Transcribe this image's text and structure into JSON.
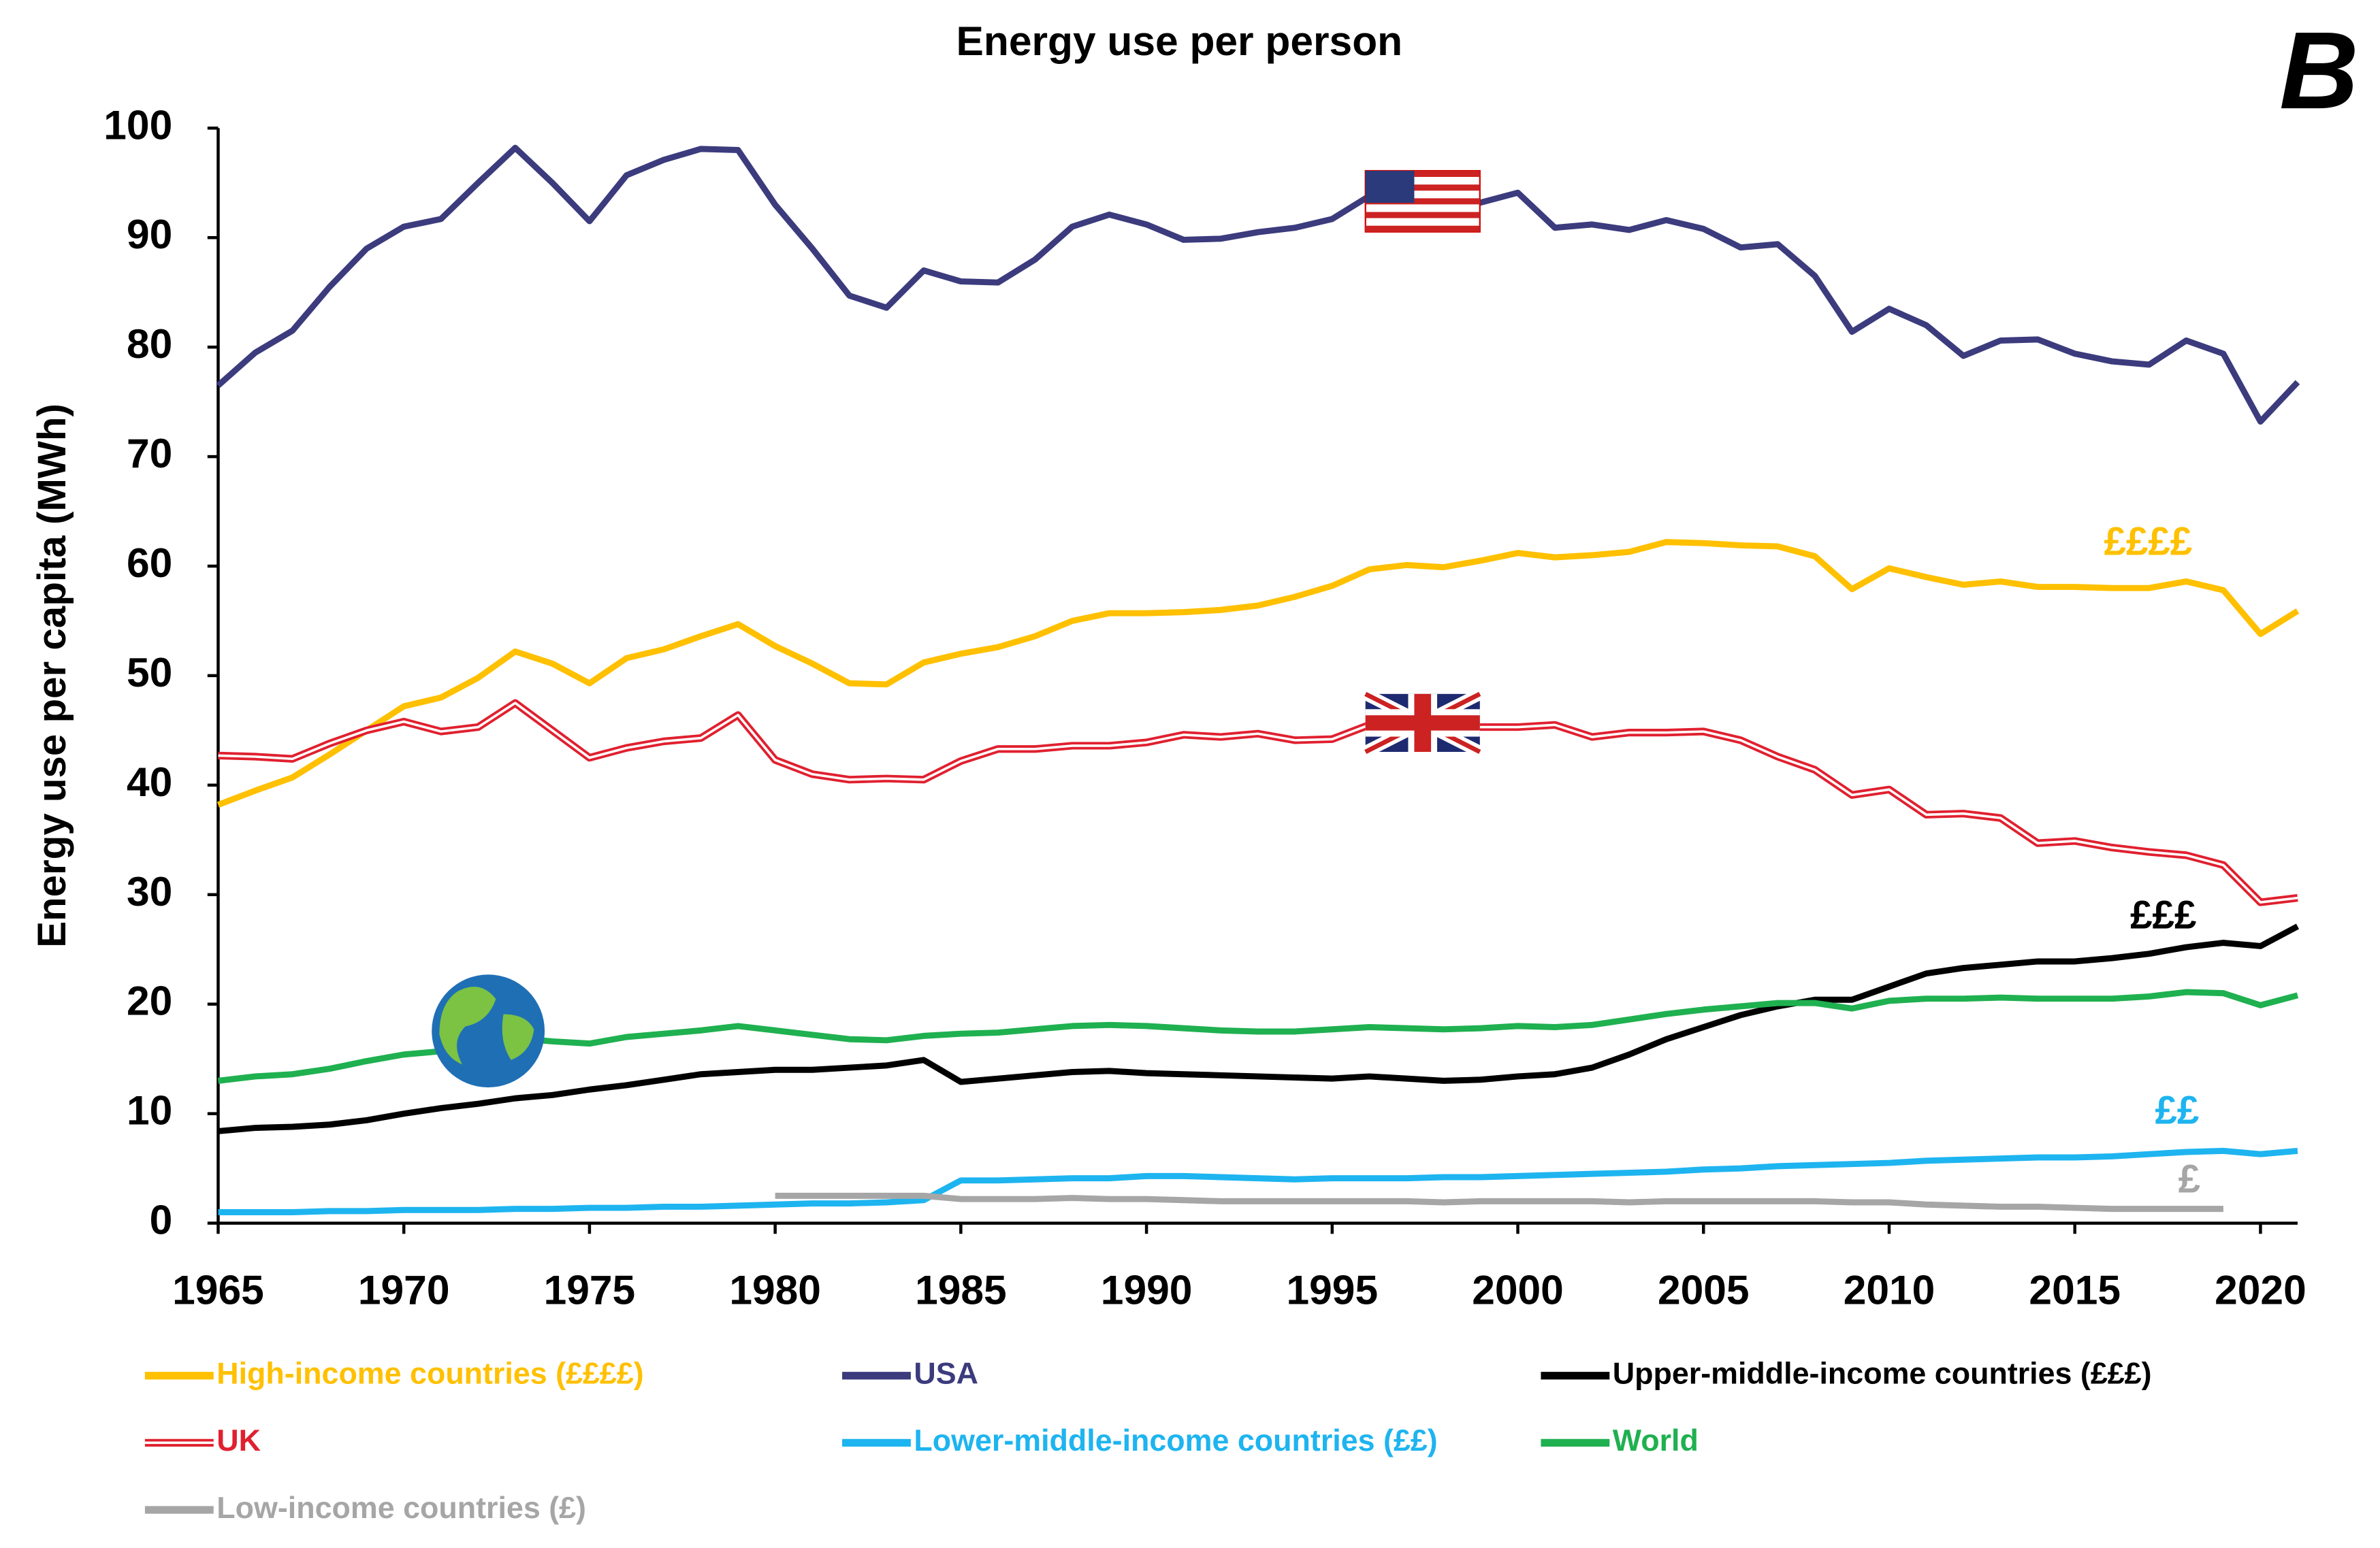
{
  "chart_data": {
    "type": "line",
    "title": "Energy use per person",
    "y_label": "Energy use per capita (MWh)",
    "x": [
      1965,
      1966,
      1967,
      1968,
      1969,
      1970,
      1971,
      1972,
      1973,
      1974,
      1975,
      1976,
      1977,
      1978,
      1979,
      1980,
      1981,
      1982,
      1983,
      1984,
      1985,
      1986,
      1987,
      1988,
      1989,
      1990,
      1991,
      1992,
      1993,
      1994,
      1995,
      1996,
      1997,
      1998,
      1999,
      2000,
      2001,
      2002,
      2003,
      2004,
      2005,
      2006,
      2007,
      2008,
      2009,
      2010,
      2011,
      2012,
      2013,
      2014,
      2015,
      2016,
      2017,
      2018,
      2019,
      2020,
      2021
    ],
    "xlim": [
      1965,
      2021
    ],
    "xticks": [
      1965,
      1970,
      1975,
      1980,
      1985,
      1990,
      1995,
      2000,
      2005,
      2010,
      2015,
      2020
    ],
    "ylim": [
      0,
      100
    ],
    "yticks": [
      0,
      10,
      20,
      30,
      40,
      50,
      60,
      70,
      80,
      90,
      100
    ],
    "series": [
      {
        "name": "High-income countries (££££)",
        "color": "#ffc000",
        "values": [
          38.2,
          39.5,
          40.7,
          42.8,
          45,
          47.2,
          48,
          49.8,
          52.2,
          51.1,
          49.3,
          51.6,
          52.4,
          53.6,
          54.7,
          52.7,
          51.1,
          49.3,
          49.2,
          51.2,
          52,
          52.6,
          53.6,
          55,
          55.7,
          55.7,
          55.8,
          56,
          56.4,
          57.2,
          58.2,
          59.7,
          60.1,
          59.9,
          60.5,
          61.2,
          60.8,
          61,
          61.3,
          62.2,
          62.1,
          61.9,
          61.8,
          60.9,
          57.9,
          59.8,
          59,
          58.3,
          58.6,
          58.1,
          58.1,
          58,
          58,
          58.6,
          57.8,
          53.8,
          55.9
        ]
      },
      {
        "name": "USA",
        "color": "#3b3b7d",
        "values": [
          76.5,
          79.5,
          81.5,
          85.5,
          89,
          91,
          91.7,
          95,
          98.2,
          95,
          91.5,
          95.7,
          97.1,
          98.1,
          98,
          93,
          89,
          84.7,
          83.6,
          87,
          86,
          85.9,
          88,
          91,
          92.1,
          91.2,
          89.8,
          89.9,
          90.5,
          90.9,
          91.7,
          93.8,
          93.5,
          92.5,
          93.2,
          94.1,
          90.9,
          91.2,
          90.7,
          91.6,
          90.8,
          89.1,
          89.4,
          86.5,
          81.4,
          83.5,
          82,
          79.2,
          80.6,
          80.7,
          79.4,
          78.7,
          78.4,
          80.6,
          79.4,
          73.2,
          76.8
        ]
      },
      {
        "name": "Upper-middle-income countries (£££)",
        "color": "#000000",
        "values": [
          8.4,
          8.7,
          8.8,
          9,
          9.4,
          10,
          10.5,
          10.9,
          11.4,
          11.7,
          12.2,
          12.6,
          13.1,
          13.6,
          13.8,
          14,
          14,
          14.2,
          14.4,
          14.9,
          12.9,
          13.2,
          13.5,
          13.8,
          13.9,
          13.7,
          13.6,
          13.5,
          13.4,
          13.3,
          13.2,
          13.4,
          13.2,
          13,
          13.1,
          13.4,
          13.6,
          14.2,
          15.4,
          16.8,
          17.9,
          19,
          19.8,
          20.4,
          20.4,
          21.6,
          22.8,
          23.3,
          23.6,
          23.9,
          23.9,
          24.2,
          24.6,
          25.2,
          25.6,
          25.3,
          27.1
        ]
      },
      {
        "name": "UK",
        "color": "#e0202f",
        "double": true,
        "values": [
          42.7,
          42.6,
          42.4,
          43.8,
          45,
          45.8,
          44.9,
          45.3,
          47.5,
          45,
          42.5,
          43.4,
          44,
          44.3,
          46.4,
          42.3,
          41,
          40.5,
          40.6,
          40.5,
          42.2,
          43.3,
          43.3,
          43.6,
          43.6,
          43.9,
          44.6,
          44.4,
          44.7,
          44.1,
          44.2,
          45.5,
          45,
          45.3,
          45.3,
          45.3,
          45.5,
          44.4,
          44.8,
          44.8,
          44.9,
          44.1,
          42.6,
          41.4,
          39.1,
          39.6,
          37.3,
          37.4,
          37,
          34.7,
          34.9,
          34.3,
          33.9,
          33.6,
          32.7,
          29.3,
          29.7
        ]
      },
      {
        "name": "Lower-middle-income countries (££)",
        "color": "#1eb4f0",
        "values": [
          1,
          1,
          1,
          1.1,
          1.1,
          1.2,
          1.2,
          1.2,
          1.3,
          1.3,
          1.4,
          1.4,
          1.5,
          1.5,
          1.6,
          1.7,
          1.8,
          1.8,
          1.9,
          2.1,
          3.9,
          3.9,
          4,
          4.1,
          4.1,
          4.3,
          4.3,
          4.2,
          4.1,
          4,
          4.1,
          4.1,
          4.1,
          4.2,
          4.2,
          4.3,
          4.4,
          4.5,
          4.6,
          4.7,
          4.9,
          5,
          5.2,
          5.3,
          5.4,
          5.5,
          5.7,
          5.8,
          5.9,
          6,
          6,
          6.1,
          6.3,
          6.5,
          6.6,
          6.3,
          6.6
        ]
      },
      {
        "name": "World",
        "color": "#1fb050",
        "values": [
          13,
          13.4,
          13.6,
          14.1,
          14.8,
          15.4,
          15.7,
          16.2,
          16.9,
          16.6,
          16.4,
          17,
          17.3,
          17.6,
          18,
          17.6,
          17.2,
          16.8,
          16.7,
          17.1,
          17.3,
          17.4,
          17.7,
          18,
          18.1,
          18,
          17.8,
          17.6,
          17.5,
          17.5,
          17.7,
          17.9,
          17.8,
          17.7,
          17.8,
          18,
          17.9,
          18.1,
          18.6,
          19.1,
          19.5,
          19.8,
          20.1,
          20.1,
          19.6,
          20.3,
          20.5,
          20.5,
          20.6,
          20.5,
          20.5,
          20.5,
          20.7,
          21.1,
          21,
          19.9,
          20.8
        ]
      },
      {
        "name": "Low-income countries (£)",
        "color": "#a6a6a6",
        "values": [
          null,
          null,
          null,
          null,
          null,
          null,
          null,
          null,
          null,
          null,
          null,
          null,
          null,
          null,
          null,
          2.5,
          2.5,
          2.5,
          2.5,
          2.5,
          2.2,
          2.2,
          2.2,
          2.3,
          2.2,
          2.2,
          2.1,
          2,
          2,
          2,
          2,
          2,
          2,
          1.9,
          2,
          2,
          2,
          2,
          1.9,
          2,
          2,
          2,
          2,
          2,
          1.9,
          1.9,
          1.7,
          1.6,
          1.5,
          1.5,
          1.4,
          1.3,
          1.3,
          1.3,
          1.3,
          null,
          null
        ]
      }
    ],
    "annotations": [
      {
        "text": "££££",
        "color": "#ffc000"
      },
      {
        "text": "£££",
        "color": "#000000"
      },
      {
        "text": "££",
        "color": "#1eb4f0"
      },
      {
        "text": "£",
        "color": "#a6a6a6"
      },
      {
        "text": "B",
        "color": "#000000"
      }
    ]
  }
}
